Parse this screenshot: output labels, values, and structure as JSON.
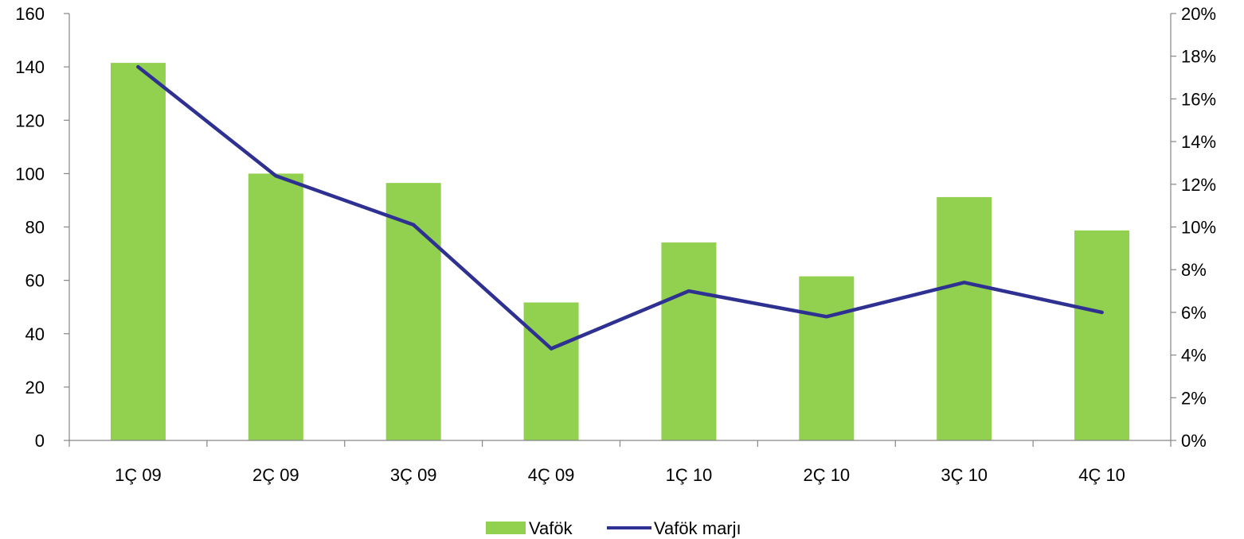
{
  "chart_data": {
    "type": "bar",
    "categories": [
      "1Ç 09",
      "2Ç 09",
      "3Ç 09",
      "4Ç 09",
      "1Ç 10",
      "2Ç 10",
      "3Ç 10",
      "4Ç 10"
    ],
    "series": [
      {
        "name": "Vafök",
        "type": "bar",
        "axis": "left",
        "color": "#92d050",
        "values": [
          141.5,
          100,
          96.5,
          51.7,
          74.2,
          61.5,
          91.2,
          78.7
        ]
      },
      {
        "name": "Vafök marjı",
        "type": "line",
        "axis": "right",
        "color": "#2e3192",
        "values": [
          17.5,
          12.4,
          10.1,
          4.3,
          7.0,
          5.8,
          7.4,
          6.0
        ]
      }
    ],
    "y_left": {
      "min": 0,
      "max": 160,
      "step": 20,
      "tick_labels": [
        "0",
        "20",
        "40",
        "60",
        "80",
        "100",
        "120",
        "140",
        "160"
      ]
    },
    "y_right": {
      "min": 0,
      "max": 20,
      "step": 2,
      "unit": "%",
      "tick_labels": [
        "0%",
        "2%",
        "4%",
        "6%",
        "8%",
        "10%",
        "12%",
        "14%",
        "16%",
        "18%",
        "20%"
      ]
    },
    "title": "",
    "xlabel": "",
    "ylabel": "",
    "grid": false,
    "legend": {
      "placement": "bottom-center",
      "entries": [
        "Vafök",
        "Vafök marjı"
      ]
    }
  }
}
